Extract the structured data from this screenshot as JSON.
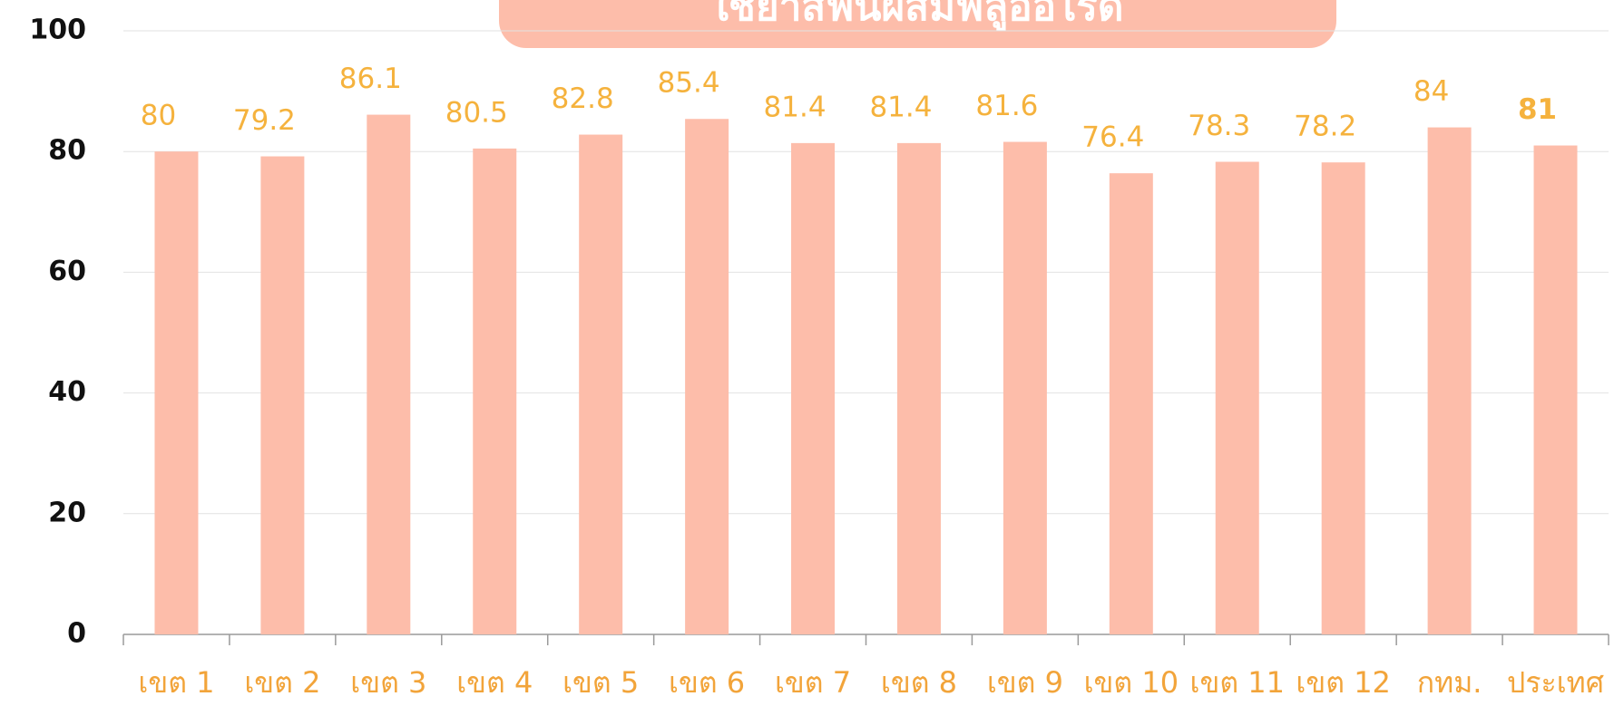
{
  "chart_data": {
    "type": "bar",
    "title": "ใช้ยาสีฟันผสมฟลูออไรด์",
    "categories": [
      "เขต 1",
      "เขต 2",
      "เขต 3",
      "เขต 4",
      "เขต 5",
      "เขต 6",
      "เขต 7",
      "เขต 8",
      "เขต 9",
      "เขต 10",
      "เขต 11",
      "เขต 12",
      "กทม.",
      "ประเทศ"
    ],
    "values": [
      80,
      79.2,
      86.1,
      80.5,
      82.8,
      85.4,
      81.4,
      81.4,
      81.6,
      76.4,
      78.3,
      78.2,
      84,
      81
    ],
    "color": "#fdbdaa",
    "ylim": [
      0,
      100
    ],
    "yticks": [
      0,
      20,
      40,
      60,
      80,
      100
    ],
    "grid": true
  }
}
